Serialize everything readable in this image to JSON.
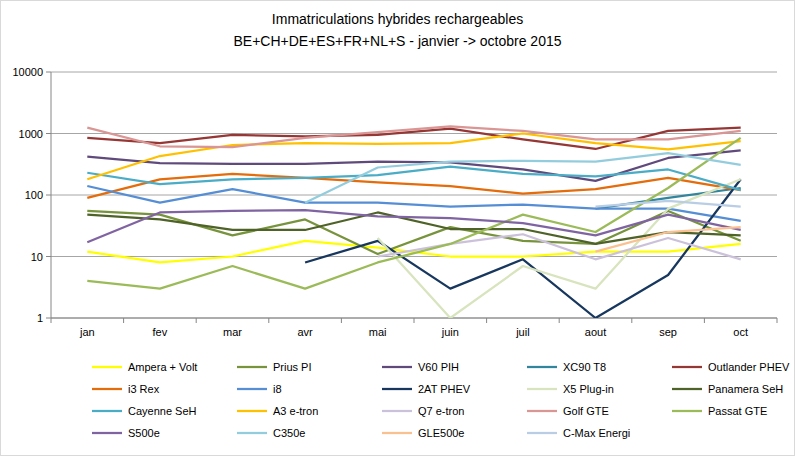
{
  "chart_data": {
    "type": "line",
    "title": "Immatriculations hybrides rechargeables",
    "subtitle": "BE+CH+DE+ES+FR+NL+S - janvier -> octobre 2015",
    "categories": [
      "jan",
      "fev",
      "mar",
      "avr",
      "mai",
      "juin",
      "juil",
      "aout",
      "sep",
      "oct"
    ],
    "log": "y",
    "grid": true,
    "legend": "bottom",
    "ylim": [
      1,
      10000
    ],
    "yticks": [
      1,
      10,
      100,
      1000,
      10000
    ],
    "series": [
      {
        "name": "Ampera + Volt",
        "color": "#ffff00",
        "values": [
          12,
          8,
          10,
          18,
          14,
          10,
          10,
          12,
          12,
          16
        ]
      },
      {
        "name": "Prius PI",
        "color": "#77933c",
        "values": [
          55,
          48,
          22,
          40,
          11,
          30,
          18,
          16,
          55,
          18
        ]
      },
      {
        "name": "V60 PIH",
        "color": "#604a7b",
        "values": [
          420,
          330,
          320,
          320,
          350,
          340,
          260,
          170,
          400,
          530
        ]
      },
      {
        "name": "XC90 T8",
        "color": "#31859c",
        "values": [
          null,
          null,
          null,
          null,
          null,
          null,
          null,
          60,
          90,
          130
        ]
      },
      {
        "name": "Outlander PHEV",
        "color": "#953735",
        "values": [
          850,
          700,
          950,
          900,
          950,
          1200,
          800,
          560,
          1100,
          1250
        ]
      },
      {
        "name": "i3 Rex",
        "color": "#e46c0a",
        "values": [
          90,
          180,
          220,
          190,
          160,
          140,
          105,
          125,
          190,
          120
        ]
      },
      {
        "name": "i8",
        "color": "#558ed5",
        "values": [
          140,
          75,
          125,
          75,
          75,
          65,
          70,
          60,
          60,
          38
        ]
      },
      {
        "name": "2AT PHEV",
        "color": "#17375e",
        "values": [
          null,
          null,
          null,
          8,
          18,
          3,
          9,
          1,
          5,
          180
        ]
      },
      {
        "name": "X5 Plug-in",
        "color": "#d7e4bd",
        "values": [
          null,
          null,
          null,
          null,
          20,
          1,
          7,
          3,
          60,
          180
        ]
      },
      {
        "name": "Panamera SeH",
        "color": "#4f6228",
        "values": [
          48,
          40,
          27,
          27,
          52,
          28,
          28,
          16,
          25,
          22
        ]
      },
      {
        "name": "Cayenne SeH",
        "color": "#4bacc6",
        "values": [
          230,
          150,
          180,
          190,
          210,
          290,
          220,
          200,
          260,
          120
        ]
      },
      {
        "name": "A3 e-tron",
        "color": "#ffc000",
        "values": [
          180,
          430,
          650,
          700,
          680,
          700,
          1000,
          700,
          550,
          750
        ]
      },
      {
        "name": "Q7 e-tron",
        "color": "#ccc1da",
        "values": [
          null,
          null,
          null,
          null,
          10,
          16,
          23,
          9,
          20,
          9
        ]
      },
      {
        "name": "Golf GTE",
        "color": "#d99694",
        "values": [
          1250,
          620,
          600,
          850,
          1050,
          1300,
          1100,
          800,
          800,
          1100
        ]
      },
      {
        "name": "Passat GTE",
        "color": "#9bbb59",
        "values": [
          4,
          3,
          7,
          3,
          8,
          16,
          48,
          25,
          130,
          850
        ]
      },
      {
        "name": "S500e",
        "color": "#8064a2",
        "values": [
          17,
          52,
          55,
          57,
          45,
          42,
          35,
          22,
          48,
          27
        ]
      },
      {
        "name": "C350e",
        "color": "#93cddd",
        "values": [
          null,
          null,
          null,
          75,
          280,
          350,
          360,
          350,
          480,
          310
        ]
      },
      {
        "name": "GLE500e",
        "color": "#fac090",
        "values": [
          null,
          null,
          null,
          null,
          null,
          null,
          null,
          12,
          25,
          30
        ]
      },
      {
        "name": "C-Max Energi",
        "color": "#b9cde5",
        "values": [
          null,
          null,
          null,
          null,
          null,
          null,
          null,
          65,
          80,
          65
        ]
      }
    ]
  }
}
